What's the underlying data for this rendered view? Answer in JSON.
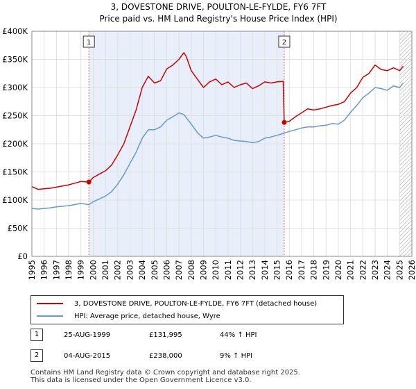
{
  "chart_data": {
    "type": "line",
    "title": "3, DOVESTONE DRIVE, POULTON-LE-FYLDE, FY6 7FT",
    "subtitle": "Price paid vs. HM Land Registry's House Price Index (HPI)",
    "xlim": [
      1995,
      2026
    ],
    "ylim": [
      0,
      400000
    ],
    "x_ticks": [
      "1995",
      "1996",
      "1997",
      "1998",
      "1999",
      "2000",
      "2001",
      "2002",
      "2003",
      "2004",
      "2005",
      "2006",
      "2007",
      "2008",
      "2009",
      "2010",
      "2011",
      "2012",
      "2013",
      "2014",
      "2015",
      "2016",
      "2017",
      "2018",
      "2019",
      "2020",
      "2021",
      "2022",
      "2023",
      "2024",
      "2025",
      "2026"
    ],
    "y_ticks": [
      "£0",
      "£50K",
      "£100K",
      "£150K",
      "£200K",
      "£250K",
      "£300K",
      "£350K",
      "£400K"
    ],
    "shaded_span": [
      1999.65,
      2015.59
    ],
    "hatch_from": 2025.0,
    "series": [
      {
        "name": "3, DOVESTONE DRIVE, POULTON-LE-FYLDE, FY6 7FT (detached house)",
        "color": "#cc0000",
        "x": [
          1995.0,
          1995.5,
          1996.0,
          1996.5,
          1997.0,
          1997.5,
          1998.0,
          1998.5,
          1999.0,
          1999.65,
          2000.0,
          2000.5,
          2001.0,
          2001.5,
          2002.0,
          2002.5,
          2003.0,
          2003.5,
          2004.0,
          2004.5,
          2005.0,
          2005.5,
          2006.0,
          2006.5,
          2007.0,
          2007.4,
          2007.6,
          2008.0,
          2008.5,
          2009.0,
          2009.5,
          2010.0,
          2010.5,
          2011.0,
          2011.5,
          2012.0,
          2012.5,
          2013.0,
          2013.5,
          2014.0,
          2014.5,
          2015.0,
          2015.5,
          2015.59,
          2016.0,
          2016.5,
          2017.0,
          2017.5,
          2018.0,
          2018.5,
          2019.0,
          2019.5,
          2020.0,
          2020.5,
          2021.0,
          2021.5,
          2022.0,
          2022.5,
          2023.0,
          2023.5,
          2024.0,
          2024.5,
          2025.0,
          2025.3
        ],
        "y": [
          124000,
          119000,
          120000,
          121000,
          123000,
          125000,
          127000,
          130000,
          133000,
          131995,
          140000,
          146000,
          152000,
          162000,
          180000,
          200000,
          230000,
          260000,
          300000,
          320000,
          308000,
          312000,
          333000,
          340000,
          350000,
          362000,
          355000,
          330000,
          315000,
          300000,
          310000,
          315000,
          305000,
          310000,
          300000,
          305000,
          308000,
          298000,
          303000,
          310000,
          308000,
          310000,
          311000,
          238000,
          240000,
          248000,
          255000,
          262000,
          260000,
          262000,
          265000,
          268000,
          270000,
          275000,
          290000,
          300000,
          318000,
          325000,
          340000,
          332000,
          330000,
          335000,
          330000,
          338000
        ]
      },
      {
        "name": "HPI: Average price, detached house, Wyre",
        "color": "#6699cc",
        "x": [
          1995.0,
          1995.5,
          1996.0,
          1996.5,
          1997.0,
          1997.5,
          1998.0,
          1998.5,
          1999.0,
          1999.65,
          2000.0,
          2000.5,
          2001.0,
          2001.5,
          2002.0,
          2002.5,
          2003.0,
          2003.5,
          2004.0,
          2004.5,
          2005.0,
          2005.5,
          2006.0,
          2006.5,
          2007.0,
          2007.4,
          2008.0,
          2008.5,
          2009.0,
          2009.5,
          2010.0,
          2010.5,
          2011.0,
          2011.5,
          2012.0,
          2012.5,
          2013.0,
          2013.5,
          2014.0,
          2014.5,
          2015.0,
          2015.59,
          2016.0,
          2016.5,
          2017.0,
          2017.5,
          2018.0,
          2018.5,
          2019.0,
          2019.5,
          2020.0,
          2020.5,
          2021.0,
          2021.5,
          2022.0,
          2022.5,
          2023.0,
          2023.5,
          2024.0,
          2024.5,
          2025.0,
          2025.3
        ],
        "y": [
          85000,
          84000,
          85000,
          86000,
          88000,
          89000,
          90000,
          92000,
          94000,
          91700,
          97000,
          102000,
          107000,
          115000,
          128000,
          145000,
          165000,
          185000,
          210000,
          225000,
          225000,
          230000,
          242000,
          248000,
          255000,
          252000,
          235000,
          220000,
          210000,
          212000,
          215000,
          212000,
          210000,
          206000,
          205000,
          204000,
          202000,
          204000,
          210000,
          212000,
          215000,
          219000,
          222000,
          225000,
          228000,
          230000,
          230000,
          232000,
          233000,
          236000,
          235000,
          242000,
          256000,
          268000,
          282000,
          290000,
          300000,
          298000,
          295000,
          303000,
          300000,
          308000
        ]
      }
    ],
    "transactions": [
      {
        "marker": "1",
        "x": 1999.65,
        "y": 131995,
        "date": "25-AUG-1999",
        "price": "£131,995",
        "hpi": "44% ↑ HPI"
      },
      {
        "marker": "2",
        "x": 2015.59,
        "y": 238000,
        "date": "04-AUG-2015",
        "price": "£238,000",
        "hpi": "9% ↑ HPI"
      }
    ]
  },
  "legend": {
    "property_label": "3, DOVESTONE DRIVE, POULTON-LE-FYLDE, FY6 7FT (detached house)",
    "hpi_label": "HPI: Average price, detached house, Wyre"
  },
  "footer": {
    "line1": "Contains HM Land Registry data © Crown copyright and database right 2025.",
    "line2": "This data is licensed under the Open Government Licence v3.0."
  }
}
